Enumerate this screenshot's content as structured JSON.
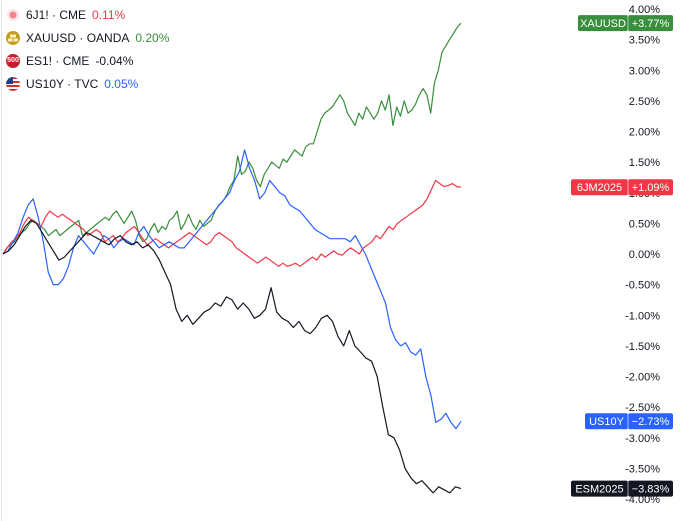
{
  "legend": [
    {
      "symbol": "6J1!",
      "exchange": "CME",
      "change": "0.11%",
      "color": "#f23645",
      "icon": "red-dot-icon"
    },
    {
      "symbol": "XAUUSD",
      "exchange": "OANDA",
      "change": "0.20%",
      "color": "#388e3c",
      "icon": "gold-bars-icon"
    },
    {
      "symbol": "ES1!",
      "exchange": "CME",
      "change": "-0.04%",
      "color": "#131722",
      "icon": "sp500-badge-icon",
      "badge_text": "500"
    },
    {
      "symbol": "US10Y",
      "exchange": "TVC",
      "change": "0.05%",
      "color": "#2962ff",
      "icon": "us-flag-icon"
    }
  ],
  "chart_data": {
    "type": "line",
    "ylim": [
      -4.0,
      4.0
    ],
    "y_ticks": [
      "4.00%",
      "3.50%",
      "3.00%",
      "2.50%",
      "2.00%",
      "1.50%",
      "1.00%",
      "0.50%",
      "0.00%",
      "-0.50%",
      "-1.00%",
      "-1.50%",
      "-2.00%",
      "-2.50%",
      "-3.00%",
      "-3.50%",
      "-4.00%"
    ],
    "grid": false,
    "series": [
      {
        "name": "XAUUSD",
        "color": "#388e3c",
        "tag_label": "XAUUSD",
        "tag_value": "+3.77%",
        "last": 3.77,
        "values": [
          0.0,
          0.1,
          0.15,
          0.2,
          0.3,
          0.35,
          0.4,
          0.5,
          0.55,
          0.5,
          0.45,
          0.4,
          0.3,
          0.35,
          0.4,
          0.3,
          0.35,
          0.4,
          0.45,
          0.5,
          0.55,
          0.3,
          0.35,
          0.4,
          0.45,
          0.5,
          0.55,
          0.6,
          0.55,
          0.65,
          0.7,
          0.6,
          0.5,
          0.6,
          0.7,
          0.55,
          0.3,
          0.2,
          0.25,
          0.4,
          0.5,
          0.35,
          0.45,
          0.4,
          0.55,
          0.6,
          0.7,
          0.4,
          0.5,
          0.65,
          0.5,
          0.4,
          0.55,
          0.45,
          0.5,
          0.55,
          0.7,
          0.8,
          0.85,
          0.95,
          1.1,
          1.2,
          1.6,
          1.3,
          1.35,
          1.5,
          1.4,
          1.2,
          1.1,
          1.3,
          1.4,
          1.5,
          1.45,
          1.4,
          1.55,
          1.5,
          1.6,
          1.7,
          1.65,
          1.6,
          1.75,
          1.8,
          1.8,
          2.0,
          2.2,
          2.3,
          2.35,
          2.4,
          2.5,
          2.6,
          2.5,
          2.3,
          2.2,
          2.1,
          2.3,
          2.2,
          2.4,
          2.3,
          2.2,
          2.3,
          2.5,
          2.35,
          2.6,
          2.1,
          2.4,
          2.25,
          2.5,
          2.3,
          2.35,
          2.45,
          2.6,
          2.7,
          2.6,
          2.3,
          2.8,
          3.0,
          3.3,
          3.4,
          3.5,
          3.6,
          3.7,
          3.77
        ]
      },
      {
        "name": "6JM2025",
        "color": "#f23645",
        "tag_label": "6JM2025",
        "tag_value": "+1.09%",
        "last": 1.09,
        "values": [
          0.0,
          0.1,
          0.2,
          0.25,
          0.35,
          0.5,
          0.6,
          0.55,
          0.5,
          0.45,
          0.6,
          0.7,
          0.65,
          0.6,
          0.65,
          0.6,
          0.55,
          0.5,
          0.45,
          0.4,
          0.3,
          0.35,
          0.4,
          0.35,
          0.2,
          0.25,
          0.3,
          0.2,
          0.25,
          0.35,
          0.4,
          0.45,
          0.35,
          0.25,
          0.15,
          0.2,
          0.25,
          0.2,
          0.15,
          0.1,
          0.15,
          0.2,
          0.25,
          0.3,
          0.35,
          0.3,
          0.25,
          0.2,
          0.15,
          0.2,
          0.3,
          0.35,
          0.3,
          0.25,
          0.2,
          0.1,
          0.05,
          0.0,
          -0.05,
          -0.1,
          -0.15,
          -0.1,
          -0.05,
          -0.1,
          -0.15,
          -0.2,
          -0.15,
          -0.2,
          -0.18,
          -0.15,
          -0.2,
          -0.15,
          -0.1,
          -0.05,
          -0.1,
          0.0,
          -0.05,
          0.0,
          0.05,
          0.0,
          -0.02,
          0.05,
          0.1,
          0.05,
          0.0,
          0.1,
          0.15,
          0.2,
          0.3,
          0.25,
          0.35,
          0.45,
          0.4,
          0.5,
          0.55,
          0.6,
          0.65,
          0.7,
          0.75,
          0.8,
          0.9,
          1.05,
          1.2,
          1.15,
          1.1,
          1.12,
          1.15,
          1.1,
          1.09
        ]
      },
      {
        "name": "US10Y",
        "color": "#2962ff",
        "tag_label": "US10Y",
        "tag_value": "−2.73%",
        "last": -2.73,
        "values": [
          0.0,
          0.05,
          0.2,
          0.35,
          0.6,
          0.8,
          0.9,
          0.6,
          0.2,
          -0.3,
          -0.5,
          -0.5,
          -0.4,
          -0.2,
          0.1,
          0.3,
          0.2,
          0.1,
          0.0,
          0.15,
          0.3,
          0.25,
          0.1,
          0.2,
          0.25,
          0.2,
          0.15,
          0.35,
          0.45,
          0.3,
          0.2,
          0.1,
          0.15,
          0.2,
          0.15,
          0.1,
          0.1,
          0.2,
          0.3,
          0.4,
          0.5,
          0.6,
          0.7,
          0.8,
          0.9,
          1.0,
          1.2,
          1.35,
          1.7,
          1.4,
          1.2,
          0.9,
          1.0,
          1.2,
          1.1,
          1.0,
          0.95,
          0.8,
          0.75,
          0.7,
          0.6,
          0.5,
          0.4,
          0.35,
          0.3,
          0.25,
          0.25,
          0.25,
          0.25,
          0.2,
          0.3,
          0.15,
          0.0,
          -0.2,
          -0.4,
          -0.6,
          -0.8,
          -1.2,
          -1.4,
          -1.5,
          -1.45,
          -1.6,
          -1.65,
          -1.55,
          -2.0,
          -2.3,
          -2.75,
          -2.7,
          -2.6,
          -2.75,
          -2.85,
          -2.73
        ]
      },
      {
        "name": "ESM2025",
        "color": "#131722",
        "tag_label": "ESM2025",
        "tag_value": "−3.83%",
        "last": -3.83,
        "values": [
          0.0,
          0.05,
          0.15,
          0.3,
          0.45,
          0.55,
          0.5,
          0.35,
          0.2,
          0.05,
          -0.1,
          -0.05,
          0.05,
          0.15,
          0.25,
          0.35,
          0.3,
          0.25,
          0.2,
          0.15,
          0.25,
          0.3,
          0.2,
          0.15,
          0.2,
          0.1,
          0.15,
          0.05,
          -0.1,
          -0.3,
          -0.5,
          -0.9,
          -1.1,
          -1.0,
          -1.15,
          -1.05,
          -0.95,
          -0.9,
          -0.8,
          -0.85,
          -0.7,
          -0.75,
          -0.9,
          -0.8,
          -0.9,
          -1.05,
          -1.0,
          -0.9,
          -0.55,
          -0.95,
          -1.05,
          -1.1,
          -1.2,
          -1.1,
          -1.25,
          -1.3,
          -1.2,
          -1.05,
          -1.0,
          -1.1,
          -1.35,
          -1.5,
          -1.25,
          -1.5,
          -1.6,
          -1.7,
          -1.75,
          -2.0,
          -2.5,
          -2.95,
          -3.0,
          -3.2,
          -3.5,
          -3.65,
          -3.75,
          -3.7,
          -3.8,
          -3.9,
          -3.8,
          -3.85,
          -3.9,
          -3.8,
          -3.83
        ]
      }
    ]
  }
}
